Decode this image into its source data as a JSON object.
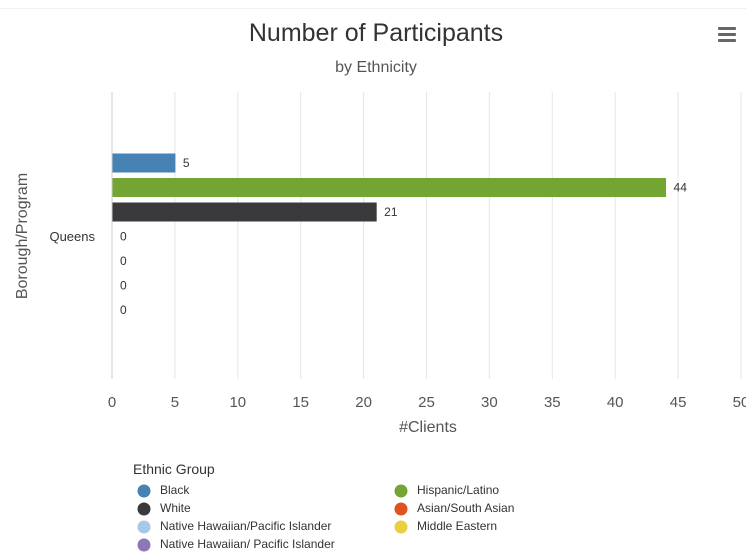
{
  "toolbar": {
    "menu_icon": "hamburger-menu-icon"
  },
  "chart_data": {
    "type": "bar",
    "orientation": "horizontal",
    "title": "Number of Participants",
    "subtitle": "by Ethnicity",
    "xlabel": "#Clients",
    "ylabel": "Borough/Program",
    "categories": [
      "Queens"
    ],
    "xlim": [
      0,
      50
    ],
    "xticks": [
      0,
      5,
      10,
      15,
      20,
      25,
      30,
      35,
      40,
      45,
      50
    ],
    "grid": true,
    "legend_title": "Ethnic Group",
    "legend_position": "bottom-left",
    "series": [
      {
        "name": "Black",
        "values": [
          5
        ],
        "color": "#4682b4"
      },
      {
        "name": "Hispanic/Latino",
        "values": [
          44
        ],
        "color": "#73a533"
      },
      {
        "name": "White",
        "values": [
          21
        ],
        "color": "#3a3a3c"
      },
      {
        "name": "Asian/South Asian",
        "values": [
          0
        ],
        "color": "#e05320"
      },
      {
        "name": "Native Hawaiian/Pacific Islander",
        "values": [
          0
        ],
        "color": "#a8c8e8"
      },
      {
        "name": "Middle Eastern",
        "values": [
          0
        ],
        "color": "#e8d040"
      },
      {
        "name": "Native Hawaiian/ Pacific Islander",
        "values": [
          0
        ],
        "color": "#8c78b8"
      }
    ],
    "legend_order": [
      "Black",
      "Hispanic/Latino",
      "White",
      "Asian/South Asian",
      "Native Hawaiian/Pacific Islander",
      "Middle Eastern",
      "Native Hawaiian/ Pacific Islander"
    ]
  }
}
